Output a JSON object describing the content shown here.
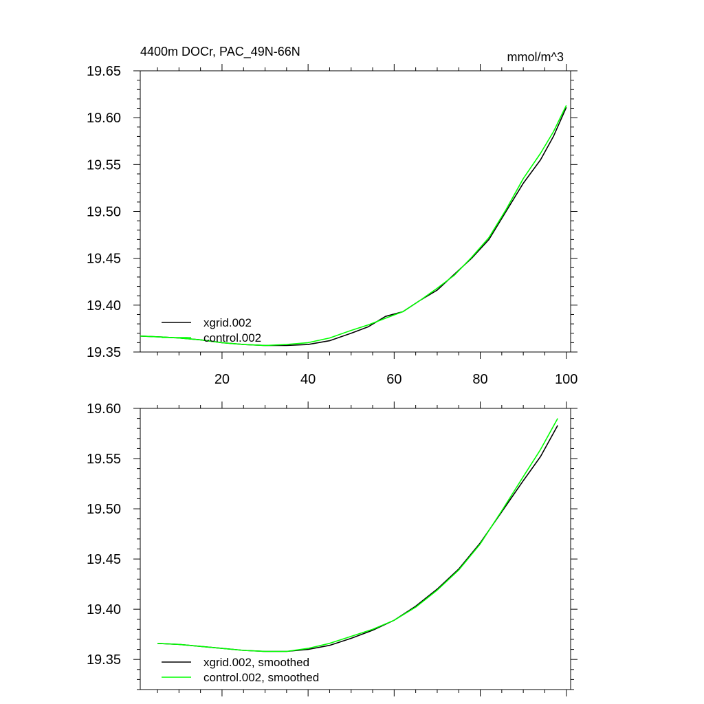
{
  "chart_data": [
    {
      "type": "line",
      "title": "4400m DOCr, PAC_49N-66N",
      "units": "mmol/m^3",
      "xlabel": "",
      "ylabel": "",
      "xlim": [
        1,
        101
      ],
      "ylim": [
        19.35,
        19.65
      ],
      "xticks": [
        20,
        40,
        60,
        80,
        100
      ],
      "yticks": [
        "19.35",
        "19.40",
        "19.45",
        "19.50",
        "19.55",
        "19.60",
        "19.65"
      ],
      "legend_position": "bottom-left",
      "series": [
        {
          "name": "xgrid.002",
          "color": "#000000",
          "points": [
            [
              1,
              19.367
            ],
            [
              6,
              19.366
            ],
            [
              10,
              19.365
            ],
            [
              15,
              19.363
            ],
            [
              20,
              19.36
            ],
            [
              25,
              19.358
            ],
            [
              30,
              19.357
            ],
            [
              35,
              19.357
            ],
            [
              40,
              19.358
            ],
            [
              45,
              19.362
            ],
            [
              50,
              19.37
            ],
            [
              54,
              19.377
            ],
            [
              58,
              19.388
            ],
            [
              62,
              19.393
            ],
            [
              66,
              19.405
            ],
            [
              70,
              19.416
            ],
            [
              74,
              19.433
            ],
            [
              78,
              19.45
            ],
            [
              82,
              19.47
            ],
            [
              86,
              19.5
            ],
            [
              90,
              19.53
            ],
            [
              94,
              19.555
            ],
            [
              97,
              19.58
            ],
            [
              100,
              19.611
            ]
          ]
        },
        {
          "name": "control.002",
          "color": "#00ff00",
          "points": [
            [
              1,
              19.367
            ],
            [
              6,
              19.366
            ],
            [
              10,
              19.365
            ],
            [
              15,
              19.363
            ],
            [
              20,
              19.36
            ],
            [
              25,
              19.358
            ],
            [
              30,
              19.357
            ],
            [
              35,
              19.358
            ],
            [
              40,
              19.36
            ],
            [
              45,
              19.365
            ],
            [
              50,
              19.373
            ],
            [
              54,
              19.379
            ],
            [
              58,
              19.386
            ],
            [
              62,
              19.393
            ],
            [
              66,
              19.405
            ],
            [
              70,
              19.418
            ],
            [
              74,
              19.432
            ],
            [
              78,
              19.451
            ],
            [
              82,
              19.472
            ],
            [
              86,
              19.502
            ],
            [
              90,
              19.535
            ],
            [
              94,
              19.562
            ],
            [
              97,
              19.585
            ],
            [
              100,
              19.613
            ]
          ]
        }
      ]
    },
    {
      "type": "line",
      "title": "",
      "xlabel": "",
      "ylabel": "",
      "xlim": [
        1,
        101
      ],
      "ylim": [
        19.32,
        19.6
      ],
      "xticks": [
        20,
        40,
        60,
        80,
        100
      ],
      "yticks": [
        "19.35",
        "19.40",
        "19.45",
        "19.50",
        "19.55",
        "19.60"
      ],
      "legend_position": "bottom-left",
      "series": [
        {
          "name": "xgrid.002, smoothed",
          "color": "#000000",
          "points": [
            [
              5,
              19.366
            ],
            [
              10,
              19.365
            ],
            [
              15,
              19.363
            ],
            [
              20,
              19.361
            ],
            [
              25,
              19.359
            ],
            [
              30,
              19.358
            ],
            [
              35,
              19.358
            ],
            [
              40,
              19.36
            ],
            [
              45,
              19.364
            ],
            [
              50,
              19.371
            ],
            [
              55,
              19.379
            ],
            [
              60,
              19.389
            ],
            [
              65,
              19.403
            ],
            [
              70,
              19.42
            ],
            [
              75,
              19.44
            ],
            [
              80,
              19.466
            ],
            [
              85,
              19.497
            ],
            [
              90,
              19.528
            ],
            [
              94,
              19.552
            ],
            [
              98,
              19.583
            ]
          ]
        },
        {
          "name": "control.002, smoothed",
          "color": "#00ff00",
          "points": [
            [
              5,
              19.366
            ],
            [
              10,
              19.365
            ],
            [
              15,
              19.363
            ],
            [
              20,
              19.361
            ],
            [
              25,
              19.359
            ],
            [
              30,
              19.358
            ],
            [
              35,
              19.358
            ],
            [
              40,
              19.361
            ],
            [
              45,
              19.366
            ],
            [
              50,
              19.373
            ],
            [
              55,
              19.38
            ],
            [
              60,
              19.389
            ],
            [
              65,
              19.402
            ],
            [
              70,
              19.419
            ],
            [
              75,
              19.439
            ],
            [
              80,
              19.465
            ],
            [
              85,
              19.498
            ],
            [
              90,
              19.532
            ],
            [
              94,
              19.559
            ],
            [
              98,
              19.59
            ]
          ]
        }
      ]
    }
  ]
}
